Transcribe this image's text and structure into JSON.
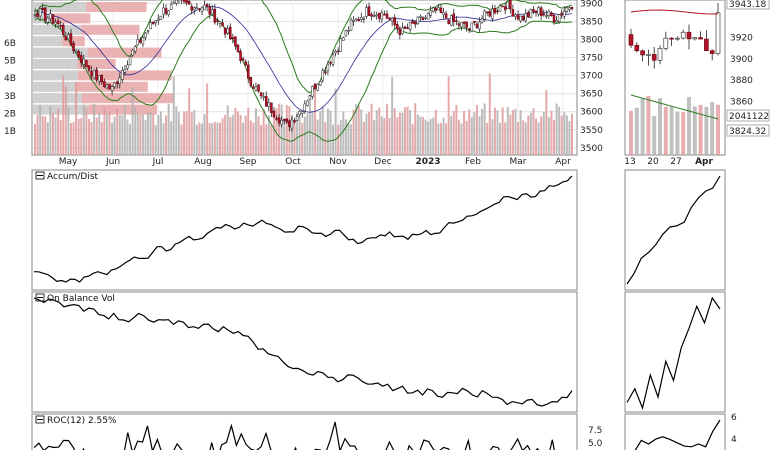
{
  "chart_data": [
    {
      "type": "candlestick",
      "panel": "main",
      "y_ticks": [
        3500,
        3550,
        3600,
        3650,
        3700,
        3750,
        3800,
        3850,
        3900
      ],
      "ylim": [
        3480,
        3910
      ],
      "x_months": [
        "May",
        "Jun",
        "Jul",
        "Aug",
        "Sep",
        "Oct",
        "Nov",
        "Dec",
        "2023",
        "Feb",
        "Mar",
        "Apr"
      ],
      "volume_ticks": [
        "1B",
        "2B",
        "3B",
        "4B",
        "5B",
        "6B"
      ],
      "close_approx": [
        [
          0,
          3880
        ],
        [
          5,
          3850
        ],
        [
          10,
          3760
        ],
        [
          14,
          3700
        ],
        [
          18,
          3660
        ],
        [
          22,
          3750
        ],
        [
          26,
          3820
        ],
        [
          30,
          3880
        ],
        [
          34,
          3900
        ],
        [
          40,
          3890
        ],
        [
          44,
          3840
        ],
        [
          48,
          3760
        ],
        [
          50,
          3700
        ],
        [
          53,
          3640
        ],
        [
          56,
          3600
        ],
        [
          59,
          3560
        ],
        [
          62,
          3600
        ],
        [
          65,
          3660
        ],
        [
          68,
          3720
        ],
        [
          71,
          3780
        ],
        [
          74,
          3840
        ],
        [
          78,
          3880
        ],
        [
          82,
          3870
        ],
        [
          86,
          3820
        ],
        [
          90,
          3850
        ],
        [
          94,
          3880
        ],
        [
          98,
          3850
        ],
        [
          102,
          3830
        ],
        [
          106,
          3870
        ],
        [
          110,
          3900
        ],
        [
          114,
          3860
        ],
        [
          118,
          3880
        ],
        [
          122,
          3860
        ],
        [
          126,
          3900
        ]
      ],
      "volume_profile_rows": 10
    },
    {
      "type": "candlestick",
      "panel": "main-detail",
      "y_ticks": [
        3860,
        3880,
        3900,
        3920
      ],
      "ylim": [
        3810,
        3955
      ],
      "x_labels": [
        "13",
        "20",
        "27",
        "Apr"
      ],
      "price_labels": [
        "3943.18",
        "2041122",
        "3824.32"
      ]
    },
    {
      "type": "line",
      "title": "Accum/Dist",
      "values": [
        30,
        28,
        22,
        18,
        20,
        16,
        24,
        30,
        26,
        34,
        42,
        50,
        48,
        56,
        64,
        60,
        70,
        78,
        74,
        82,
        90,
        94,
        88,
        96,
        92,
        100,
        94,
        88,
        84,
        92,
        88,
        82,
        78,
        86,
        80,
        74,
        70,
        76,
        80,
        84,
        78,
        74,
        80,
        86,
        82,
        90,
        96,
        100,
        106,
        112,
        118,
        124,
        132,
        128,
        136,
        132,
        140,
        146,
        152,
        160
      ]
    },
    {
      "type": "line",
      "title": "On Balance Vol",
      "values": [
        100,
        96,
        98,
        92,
        94,
        88,
        90,
        84,
        86,
        80,
        82,
        84,
        78,
        80,
        76,
        78,
        74,
        76,
        72,
        74,
        68,
        66,
        60,
        54,
        48,
        42,
        36,
        34,
        30,
        32,
        28,
        26,
        30,
        24,
        22,
        20,
        16,
        20,
        14,
        12,
        16,
        10,
        14,
        18,
        12,
        16,
        10,
        8,
        6,
        4,
        8,
        2,
        6,
        10,
        16
      ],
      "detail_values": [
        20,
        30,
        16,
        40,
        24,
        50,
        36,
        60,
        74,
        90,
        78,
        96,
        88
      ]
    },
    {
      "type": "line",
      "title": "ROC(12) 2.55%",
      "y_ticks": [
        "7.5",
        "5.0"
      ],
      "detail_y_ticks": [
        "6",
        "4"
      ]
    }
  ]
}
